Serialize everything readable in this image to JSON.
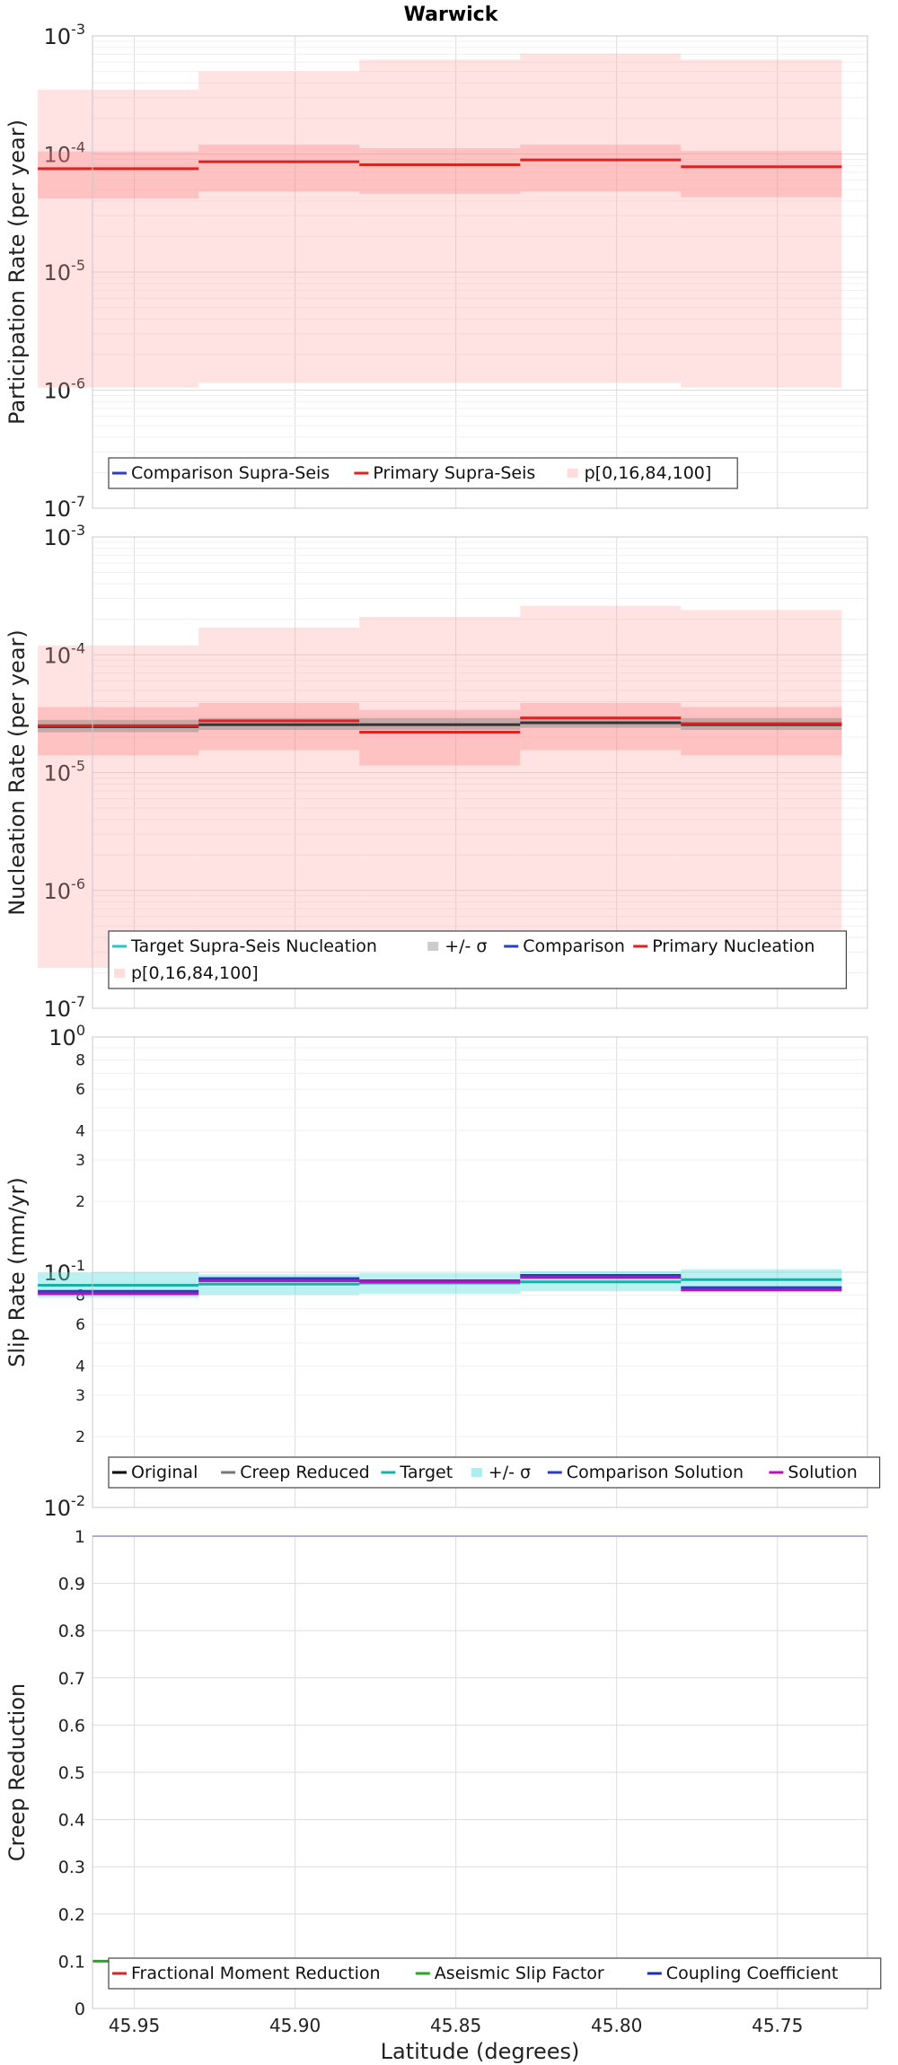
{
  "chart_data": [
    {
      "id": "participation",
      "type": "line",
      "title": "Warwick",
      "ylabel": "Participation Rate (per year)",
      "yscale": "log",
      "ylim": [
        1e-07,
        0.001
      ],
      "x_bins": [
        45.98,
        45.93,
        45.88,
        45.83,
        45.78
      ],
      "bin_width": 0.05,
      "series": [
        {
          "name": "Primary Supra-Seis",
          "color": "#dd2222",
          "values": [
            7.5e-05,
            8.6e-05,
            8.1e-05,
            8.9e-05,
            7.8e-05
          ]
        }
      ],
      "bands": [
        {
          "name": "p[0,16,84,100] outer",
          "color": "#ff9999",
          "opacity": 0.28,
          "low": [
            1.05e-06,
            1.15e-06,
            1.15e-06,
            1.15e-06,
            1.05e-06
          ],
          "high": [
            0.00035,
            0.0005,
            0.00063,
            0.00071,
            0.00063
          ]
        },
        {
          "name": "p[0,16,84,100] inner",
          "color": "#ff7777",
          "opacity": 0.3,
          "low": [
            4.2e-05,
            4.8e-05,
            4.6e-05,
            4.8e-05,
            4.3e-05
          ],
          "high": [
            0.000105,
            0.00012,
            0.000112,
            0.00012,
            0.000106
          ]
        }
      ],
      "legend": [
        {
          "label": "Comparison Supra-Seis",
          "color": "#2b3cc9",
          "kind": "line"
        },
        {
          "label": "Primary Supra-Seis",
          "color": "#dd2222",
          "kind": "line"
        },
        {
          "label": "p[0,16,84,100]",
          "color": "#ffdddd",
          "kind": "box"
        }
      ]
    },
    {
      "id": "nucleation",
      "type": "line",
      "ylabel": "Nucleation Rate (per year)",
      "yscale": "log",
      "ylim": [
        1e-07,
        0.001
      ],
      "x_bins": [
        45.98,
        45.93,
        45.88,
        45.83,
        45.78
      ],
      "bin_width": 0.05,
      "series": [
        {
          "name": "Target Supra-Seis Nucleation",
          "color": "#333333",
          "values": [
            2.45e-05,
            2.55e-05,
            2.55e-05,
            2.65e-05,
            2.55e-05
          ]
        },
        {
          "name": "Primary Nucleation",
          "color": "#dd2222",
          "values": [
            2.5e-05,
            2.75e-05,
            2.2e-05,
            2.9e-05,
            2.6e-05
          ]
        }
      ],
      "bands": [
        {
          "name": "p[0,16,84,100] outer",
          "color": "#ff9999",
          "opacity": 0.28,
          "low": [
            2.2e-07,
            2.2e-07,
            2.2e-07,
            2.2e-07,
            2.2e-07
          ],
          "high": [
            0.00012,
            0.00017,
            0.00021,
            0.00026,
            0.00024
          ]
        },
        {
          "name": "p[0,16,84,100] inner",
          "color": "#ff7777",
          "opacity": 0.3,
          "low": [
            1.4e-05,
            1.55e-05,
            1.15e-05,
            1.55e-05,
            1.4e-05
          ],
          "high": [
            3.6e-05,
            3.9e-05,
            3.4e-05,
            3.9e-05,
            3.6e-05
          ]
        },
        {
          "name": "+/- σ",
          "color": "#888888",
          "opacity": 0.45,
          "low": [
            2.2e-05,
            2.3e-05,
            2.3e-05,
            2.4e-05,
            2.3e-05
          ],
          "high": [
            2.8e-05,
            2.9e-05,
            2.9e-05,
            3e-05,
            2.9e-05
          ]
        }
      ],
      "legend": [
        {
          "label": "Target Supra-Seis Nucleation",
          "color": "#2ec4c4",
          "kind": "line"
        },
        {
          "label": "+/- σ",
          "color": "#cccccc",
          "kind": "box"
        },
        {
          "label": "Comparison",
          "color": "#2b3cc9",
          "kind": "line"
        },
        {
          "label": "Primary Nucleation",
          "color": "#dd2222",
          "kind": "line"
        },
        {
          "label": "p[0,16,84,100]",
          "color": "#ffdddd",
          "kind": "box"
        }
      ]
    },
    {
      "id": "slip",
      "type": "line",
      "ylabel": "Slip Rate (mm/yr)",
      "yscale": "log",
      "ylim": [
        0.01,
        1
      ],
      "x_bins": [
        45.98,
        45.93,
        45.88,
        45.83,
        45.78
      ],
      "bin_width": 0.05,
      "series": [
        {
          "name": "Target",
          "color": "#1ab0a8",
          "values": [
            0.088,
            0.089,
            0.09,
            0.091,
            0.093
          ]
        },
        {
          "name": "Comparison Solution",
          "color": "#2b3cc9",
          "values": [
            0.083,
            0.094,
            0.092,
            0.097,
            0.086
          ]
        },
        {
          "name": "Solution",
          "color": "#bb11bb",
          "values": [
            0.081,
            0.092,
            0.091,
            0.095,
            0.084
          ]
        }
      ],
      "bands": [
        {
          "name": "+/- σ",
          "color": "#55dddd",
          "opacity": 0.4,
          "low": [
            0.078,
            0.08,
            0.081,
            0.083,
            0.085
          ],
          "high": [
            0.1,
            0.098,
            0.099,
            0.101,
            0.103
          ]
        }
      ],
      "legend": [
        {
          "label": "Original",
          "color": "#000000",
          "kind": "line"
        },
        {
          "label": "Creep Reduced",
          "color": "#777777",
          "kind": "line"
        },
        {
          "label": "Target",
          "color": "#1ab0a8",
          "kind": "line"
        },
        {
          "label": "+/- σ",
          "color": "#aaeeee",
          "kind": "box"
        },
        {
          "label": "Comparison Solution",
          "color": "#2b3cc9",
          "kind": "line"
        },
        {
          "label": "Solution",
          "color": "#bb11bb",
          "kind": "line"
        }
      ]
    },
    {
      "id": "creep",
      "type": "line",
      "ylabel": "Creep Reduction",
      "xlabel": "Latitude (degrees)",
      "yscale": "linear",
      "ylim": [
        0,
        1
      ],
      "yticks": [
        "0",
        "0.1",
        "0.2",
        "0.3",
        "0.4",
        "0.5",
        "0.6",
        "0.7",
        "0.8",
        "0.9",
        "1"
      ],
      "x_ticks": [
        "45.95",
        "45.90",
        "45.85",
        "45.80",
        "45.75"
      ],
      "xlim": [
        45.963,
        45.722
      ],
      "series": [
        {
          "name": "Coupling Coefficient",
          "color": "#1a2db5",
          "flat_value": 1.0
        },
        {
          "name": "Aseismic Slip Factor",
          "color": "#22aa22",
          "flat_value": 0.1
        }
      ],
      "legend": [
        {
          "label": "Fractional Moment Reduction",
          "color": "#dd2222",
          "kind": "line"
        },
        {
          "label": "Aseismic Slip Factor",
          "color": "#22aa22",
          "kind": "line"
        },
        {
          "label": "Coupling Coefficient",
          "color": "#1a2db5",
          "kind": "line"
        }
      ]
    }
  ],
  "ui": {
    "grid": "on",
    "colors": {
      "grid_major": "#dddddd",
      "grid_minor": "#f0f0f0",
      "frame": "#c8c8c8",
      "legend_border": "#444444"
    }
  }
}
